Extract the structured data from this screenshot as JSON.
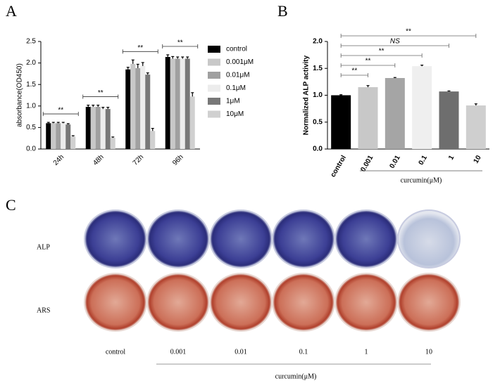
{
  "panels": {
    "a": "A",
    "b": "B",
    "c": "C"
  },
  "chart_data": [
    {
      "type": "bar",
      "ylabel": "absorbance(OD450)",
      "categories": [
        "24h",
        "48h",
        "72h",
        "96h"
      ],
      "series": [
        {
          "name": "control",
          "color": "#000000",
          "values": [
            0.6,
            0.98,
            1.85,
            2.14
          ],
          "errors": [
            0.02,
            0.04,
            0.05,
            0.05
          ]
        },
        {
          "name": "0.001μM",
          "color": "#c8c8c8",
          "values": [
            0.6,
            0.98,
            1.98,
            2.1
          ],
          "errors": [
            0.02,
            0.04,
            0.09,
            0.05
          ]
        },
        {
          "name": "0.01μM",
          "color": "#a0a0a0",
          "values": [
            0.6,
            0.98,
            1.88,
            2.1
          ],
          "errors": [
            0.02,
            0.04,
            0.09,
            0.04
          ]
        },
        {
          "name": "0.1μM",
          "color": "#ececec",
          "values": [
            0.6,
            0.93,
            1.93,
            2.1
          ],
          "errors": [
            0.02,
            0.04,
            0.08,
            0.04
          ]
        },
        {
          "name": "1μM",
          "color": "#787878",
          "values": [
            0.57,
            0.93,
            1.73,
            2.1
          ],
          "errors": [
            0.02,
            0.04,
            0.04,
            0.04
          ]
        },
        {
          "name": "10μM",
          "color": "#d0d0d0",
          "values": [
            0.29,
            0.26,
            0.42,
            1.22
          ],
          "errors": [
            0.02,
            0.02,
            0.06,
            0.09
          ]
        }
      ],
      "significance": [
        "**",
        "**",
        "**",
        "**"
      ],
      "ylim": [
        0,
        2.5
      ],
      "yticks": [
        {
          "value": 0,
          "label": "0.0"
        },
        0.5,
        {
          "value": 1,
          "label": "1.0"
        },
        1.5,
        {
          "value": 2,
          "label": "2.0"
        },
        2.5
      ],
      "legend": "right"
    },
    {
      "type": "bar",
      "ylabel": "Normalized ALP activity",
      "xlabel": "curcumin(μM)",
      "categories": [
        "control",
        "0.001",
        "0.01",
        "0.1",
        "1",
        "10"
      ],
      "values": [
        1.0,
        1.15,
        1.32,
        1.54,
        1.07,
        0.81
      ],
      "errors": [
        0.01,
        0.03,
        0.01,
        0.02,
        0.01,
        0.03
      ],
      "colors": [
        "#000000",
        "#c8c8c8",
        "#a5a5a5",
        "#efefef",
        "#6e6e6e",
        "#cfcfcf"
      ],
      "significance": [
        null,
        "**",
        "**",
        "**",
        "NS",
        "**"
      ],
      "ylim": [
        0,
        2.0
      ],
      "yticks": [
        {
          "value": 0,
          "label": "0.0"
        },
        0.5,
        {
          "value": 1,
          "label": "1.0"
        },
        1.5,
        {
          "value": 2,
          "label": "2.0"
        }
      ]
    }
  ],
  "staining": {
    "rows": [
      "ALP",
      "ARS"
    ],
    "columns": [
      "control",
      "0.001",
      "0.01",
      "0.1",
      "1",
      "10"
    ],
    "xlabel": "curcumin(μM)"
  }
}
